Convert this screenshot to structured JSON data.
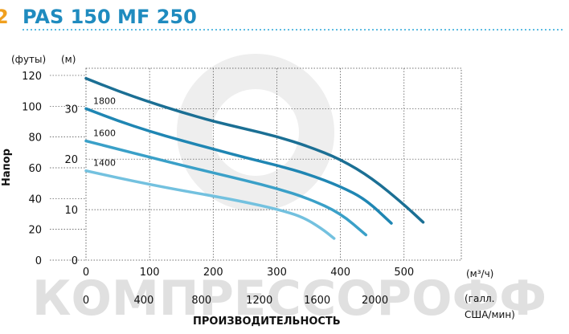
{
  "header": {
    "prefix": "2",
    "title": "PAS 150 MF 250"
  },
  "watermark": {
    "text": "КОМПРЕССОРОФФ"
  },
  "colors": {
    "title": "#1f8bbf",
    "rule": "#2aa7d8",
    "grid": "#444444",
    "curve_1800": "#1b6f94",
    "curve_1600": "#2a8fb8",
    "curve_1400": "#64b8d8",
    "watermark": "#d9d9d9"
  },
  "chart_data": {
    "type": "line",
    "y_axis_left_label": "(футы)",
    "y_axis_right_label": "(м)",
    "y_axis_title": "Напор",
    "x_axis_title": "ПРОИЗВОДИТЕЛЬНОСТЬ",
    "x_unit_primary": "(м³/ч)",
    "x_unit_secondary": "(галл. США/мин)",
    "x_ticks_m3h": [
      "0",
      "100",
      "200",
      "300",
      "400",
      "500"
    ],
    "x_ticks_gpm": [
      "0",
      "400",
      "800",
      "1200",
      "1600",
      "2000"
    ],
    "y_ticks_m": [
      "0",
      "10",
      "20",
      "30"
    ],
    "y_ticks_ft": [
      "0",
      "20",
      "40",
      "60",
      "80",
      "100",
      "120"
    ],
    "xlim": [
      0,
      590
    ],
    "ylim_m": [
      0,
      38
    ],
    "grid": true,
    "series": [
      {
        "name": "",
        "points": [
          [
            0,
            36
          ],
          [
            50,
            33.5
          ],
          [
            100,
            31.3
          ],
          [
            150,
            29.3
          ],
          [
            200,
            27.5
          ],
          [
            250,
            26
          ],
          [
            300,
            24.5
          ],
          [
            350,
            22.5
          ],
          [
            400,
            20
          ],
          [
            450,
            16.2
          ],
          [
            500,
            11
          ],
          [
            530,
            7.5
          ]
        ]
      },
      {
        "name": "1800",
        "points": [
          [
            0,
            30
          ],
          [
            50,
            27.6
          ],
          [
            100,
            25.5
          ],
          [
            150,
            23.7
          ],
          [
            200,
            22
          ],
          [
            250,
            20.3
          ],
          [
            300,
            18.8
          ],
          [
            350,
            17
          ],
          [
            400,
            14.6
          ],
          [
            440,
            12
          ],
          [
            480,
            7.3
          ]
        ]
      },
      {
        "name": "1600",
        "points": [
          [
            0,
            23.6
          ],
          [
            50,
            22
          ],
          [
            100,
            20.4
          ],
          [
            150,
            18.8
          ],
          [
            200,
            17.3
          ],
          [
            250,
            15.8
          ],
          [
            300,
            14.2
          ],
          [
            350,
            12.2
          ],
          [
            400,
            9.3
          ],
          [
            440,
            5
          ]
        ]
      },
      {
        "name": "1400",
        "points": [
          [
            0,
            17.7
          ],
          [
            50,
            16.3
          ],
          [
            100,
            15
          ],
          [
            150,
            13.8
          ],
          [
            200,
            12.7
          ],
          [
            250,
            11.5
          ],
          [
            300,
            10.1
          ],
          [
            340,
            8.6
          ],
          [
            370,
            6.3
          ],
          [
            390,
            4.3
          ]
        ]
      }
    ]
  }
}
